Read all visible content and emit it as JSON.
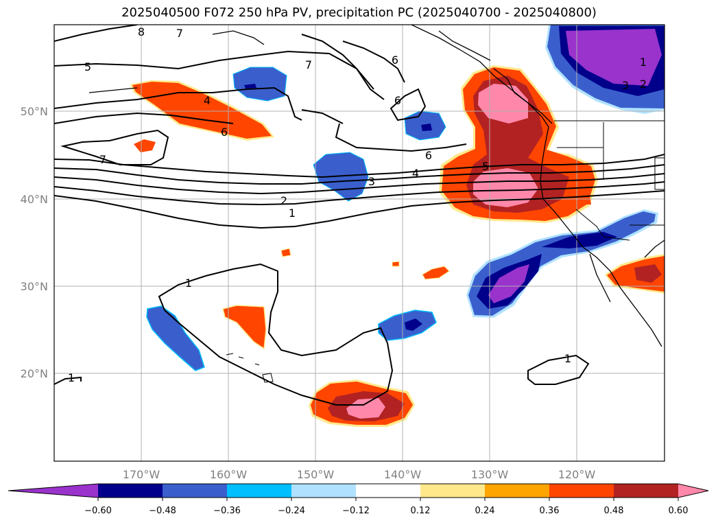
{
  "title": "2025040500 F072 250 hPa PV, precipitation PC (2025040700 - 2025040800)",
  "axes": {
    "lon_ticks": [
      "170°W",
      "160°W",
      "150°W",
      "140°W",
      "130°W",
      "120°W"
    ],
    "lat_ticks": [
      "50°N",
      "40°N",
      "30°N",
      "20°N"
    ]
  },
  "colorbar": {
    "ticks": [
      "−0.60",
      "−0.48",
      "−0.36",
      "−0.24",
      "−0.12",
      "0.12",
      "0.24",
      "0.36",
      "0.48",
      "0.60"
    ],
    "colors": [
      "#9933cc",
      "#00008b",
      "#3a5fcd",
      "#00bfff",
      "#b0e2ff",
      "#ffffff",
      "#ffe88a",
      "#ffa500",
      "#ff4500",
      "#b22222",
      "#ff88aa"
    ]
  },
  "contour_labels": [
    "8",
    "7",
    "5",
    "7",
    "6",
    "6",
    "4",
    "6",
    "7",
    "6",
    "4",
    "3",
    "2",
    "1",
    "5",
    "1",
    "1",
    "3",
    "2",
    "1",
    "1"
  ]
}
